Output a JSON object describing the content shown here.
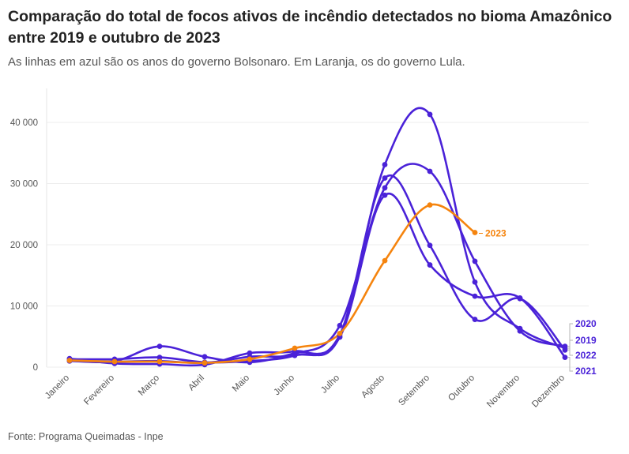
{
  "header": {
    "title": "Comparação do total de focos ativos de incêndio detectados no bioma Amazônico entre 2019 e outubro de 2023",
    "subtitle": "As linhas em azul são os anos do governo Bolsonaro. Em Laranja, os do governo Lula."
  },
  "footer": {
    "source": "Fonte: Programa Queimadas - Inpe"
  },
  "chart_data": {
    "type": "line",
    "title": "Comparação do total de focos ativos de incêndio detectados no bioma Amazônico entre 2019 e outubro de 2023",
    "subtitle": "As linhas em azul são os anos do governo Bolsonaro. Em Laranja, os do governo Lula.",
    "xlabel": "",
    "ylabel": "",
    "categories": [
      "Janeiro",
      "Fevereiro",
      "Março",
      "Abril",
      "Maio",
      "Junho",
      "Julho",
      "Agosto",
      "Setembro",
      "Outubro",
      "Novembro",
      "Dezembro"
    ],
    "ylim": [
      0,
      44000
    ],
    "yticks": [
      0,
      10000,
      20000,
      30000,
      40000
    ],
    "ytick_labels": [
      "0",
      "10 000",
      "20 000",
      "30 000",
      "40 000"
    ],
    "grid": true,
    "colors": {
      "bolsonaro": "#4a22d8",
      "lula": "#f5840e"
    },
    "series": [
      {
        "name": "2019",
        "color": "#4a22d8",
        "label_position": "end",
        "values": [
          1300,
          1300,
          1600,
          800,
          1000,
          1900,
          5300,
          30900,
          19900,
          7800,
          11200,
          2800
        ]
      },
      {
        "name": "2020",
        "color": "#4a22d8",
        "label_position": "end",
        "values": [
          1000,
          900,
          1000,
          700,
          1700,
          2200,
          6800,
          29300,
          32000,
          17300,
          5900,
          3400
        ]
      },
      {
        "name": "2021",
        "color": "#4a22d8",
        "label_position": "end",
        "values": [
          1000,
          1000,
          3400,
          1700,
          800,
          2300,
          4900,
          28100,
          16700,
          11600,
          11300,
          1600
        ]
      },
      {
        "name": "2022",
        "color": "#4a22d8",
        "label_position": "end",
        "values": [
          1400,
          600,
          500,
          400,
          2300,
          2600,
          5000,
          33100,
          41300,
          13900,
          6300,
          3100
        ]
      },
      {
        "name": "2023",
        "color": "#f5840e",
        "label_position": "last-point",
        "values": [
          1100,
          900,
          900,
          700,
          1300,
          3100,
          5500,
          17400,
          26500,
          22000,
          null,
          null
        ]
      }
    ]
  }
}
